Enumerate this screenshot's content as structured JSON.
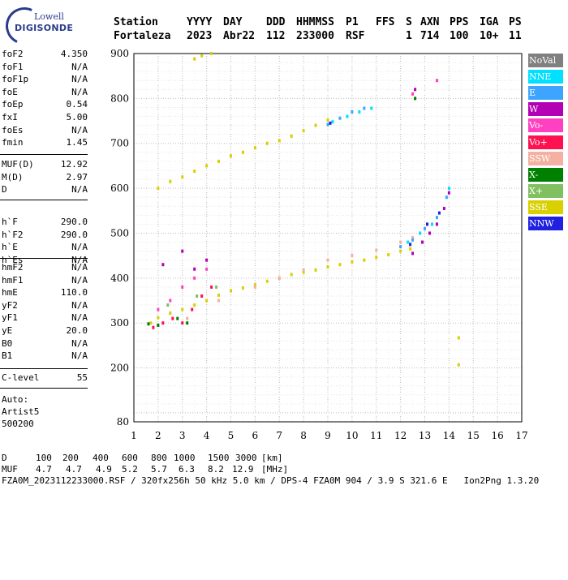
{
  "logo": {
    "line1": "Lowell",
    "line2": "DIGISONDE"
  },
  "header": {
    "labels": [
      "Station",
      "YYYY",
      "DAY",
      "DDD",
      "HHMMSS",
      "P1",
      "FFS",
      "S",
      "AXN",
      "PPS",
      "IGA",
      "PS"
    ],
    "values": [
      "Fortaleza",
      "2023",
      "Abr22",
      "112",
      "233000",
      "RSF",
      "1",
      "714",
      "100",
      "10+",
      "11"
    ]
  },
  "params": [
    {
      "k": "foF2",
      "v": "4.350"
    },
    {
      "k": "foF1",
      "v": "N/A"
    },
    {
      "k": "foF1p",
      "v": "N/A"
    },
    {
      "k": "foE",
      "v": "N/A"
    },
    {
      "k": "foEp",
      "v": "0.54"
    },
    {
      "k": "fxI",
      "v": "5.00"
    },
    {
      "k": "foEs",
      "v": "N/A"
    },
    {
      "k": "fmin",
      "v": "1.45"
    },
    {
      "k": "MUF(D)",
      "v": "12.92"
    },
    {
      "k": "M(D)",
      "v": "2.97"
    },
    {
      "k": "D",
      "v": "N/A"
    },
    {
      "k": "h`F",
      "v": "290.0"
    },
    {
      "k": "h`F2",
      "v": "290.0"
    },
    {
      "k": "h`E",
      "v": "N/A"
    },
    {
      "k": "h`Es",
      "v": "N/A"
    },
    {
      "k": "hmF2",
      "v": "N/A"
    },
    {
      "k": "hmF1",
      "v": "N/A"
    },
    {
      "k": "hmE",
      "v": "110.0"
    },
    {
      "k": "yF2",
      "v": "N/A"
    },
    {
      "k": "yF1",
      "v": "N/A"
    },
    {
      "k": "yE",
      "v": "20.0"
    },
    {
      "k": "B0",
      "v": "N/A"
    },
    {
      "k": "B1",
      "v": "N/A"
    },
    {
      "k": "C-level",
      "v": "55"
    }
  ],
  "auto": {
    "label": "Auto:",
    "artist": "Artist5",
    "version": "500200"
  },
  "legend": [
    {
      "label": "NoVal",
      "color": "#808080"
    },
    {
      "label": "NNE",
      "color": "#00e0ff"
    },
    {
      "label": "E",
      "color": "#3da5ff"
    },
    {
      "label": "W",
      "color": "#b400b4"
    },
    {
      "label": "Vo-",
      "color": "#ff40c0"
    },
    {
      "label": "Vo+",
      "color": "#ff1050"
    },
    {
      "label": "SSW",
      "color": "#f4b0a0"
    },
    {
      "label": "X-",
      "color": "#008000"
    },
    {
      "label": "X+",
      "color": "#80c060"
    },
    {
      "label": "SSE",
      "color": "#d8d000"
    },
    {
      "label": "NNW",
      "color": "#2020e0"
    }
  ],
  "footer": {
    "d_label": "D",
    "d_values": [
      "100",
      "200",
      "400",
      "600",
      "800",
      "1000",
      "1500",
      "3000",
      "[km]"
    ],
    "muf_label": "MUF",
    "muf_values": [
      "4.7",
      "4.7",
      "4.9",
      "5.2",
      "5.7",
      "6.3",
      "8.2",
      "12.9",
      "[MHz]"
    ],
    "file_line": "FZA0M_2023112233000.RSF / 320fx256h 50 kHz 5.0 km / DPS-4 FZA0M 904 / 3.9 S 321.6 E   Ion2Png 1.3.20"
  },
  "chart_data": {
    "type": "scatter",
    "xlim": [
      1,
      17
    ],
    "ylim": [
      80,
      900
    ],
    "x_ticks": [
      1,
      2,
      3,
      4,
      5,
      6,
      7,
      8,
      9,
      10,
      11,
      12,
      13,
      14,
      15,
      16,
      17
    ],
    "y_ticks": [
      200,
      300,
      400,
      500,
      600,
      700,
      800,
      900
    ],
    "y_extra_tick": 80,
    "grid": true,
    "xlabel": "",
    "ylabel": "",
    "series": [
      {
        "color": "#d8d000",
        "points": [
          [
            1.7,
            300
          ],
          [
            2.0,
            312
          ],
          [
            2.5,
            322
          ],
          [
            3.0,
            330
          ],
          [
            3.5,
            340
          ],
          [
            4.0,
            350
          ],
          [
            4.5,
            362
          ],
          [
            5.0,
            372
          ],
          [
            5.5,
            378
          ],
          [
            6.0,
            385
          ],
          [
            6.5,
            393
          ],
          [
            7.0,
            400
          ],
          [
            7.5,
            408
          ],
          [
            8.0,
            413
          ],
          [
            8.5,
            418
          ],
          [
            9.0,
            425
          ],
          [
            9.5,
            430
          ],
          [
            10.0,
            436
          ],
          [
            10.5,
            440
          ],
          [
            11.0,
            446
          ],
          [
            11.5,
            452
          ],
          [
            12.0,
            460
          ],
          [
            12.4,
            465
          ],
          [
            14.4,
            267
          ],
          [
            14.4,
            207
          ]
        ]
      },
      {
        "color": "#d8d000",
        "points": [
          [
            2.0,
            600
          ],
          [
            2.5,
            615
          ],
          [
            3.0,
            625
          ],
          [
            3.5,
            638
          ],
          [
            4.0,
            650
          ],
          [
            4.5,
            660
          ],
          [
            5.0,
            672
          ],
          [
            5.5,
            680
          ],
          [
            6.0,
            690
          ],
          [
            6.5,
            700
          ],
          [
            7.0,
            706
          ],
          [
            7.5,
            716
          ],
          [
            8.0,
            728
          ],
          [
            8.5,
            740
          ],
          [
            9.0,
            752
          ],
          [
            3.5,
            888
          ],
          [
            3.8,
            895
          ],
          [
            4.2,
            900
          ]
        ]
      },
      {
        "color": "#f4b0a0",
        "points": [
          [
            3.2,
            310
          ],
          [
            4.5,
            350
          ],
          [
            6.0,
            380
          ],
          [
            7.0,
            400
          ],
          [
            8.0,
            418
          ],
          [
            9.0,
            440
          ],
          [
            10.0,
            450
          ],
          [
            11.0,
            462
          ],
          [
            12.0,
            480
          ],
          [
            12.5,
            490
          ]
        ]
      },
      {
        "color": "#3da5ff",
        "points": [
          [
            9.0,
            742
          ],
          [
            9.5,
            756
          ],
          [
            10.0,
            770
          ],
          [
            10.5,
            778
          ],
          [
            12.0,
            470
          ],
          [
            12.5,
            485
          ],
          [
            13.0,
            510
          ],
          [
            13.5,
            535
          ],
          [
            13.9,
            580
          ]
        ]
      },
      {
        "color": "#00e0ff",
        "points": [
          [
            9.2,
            748
          ],
          [
            9.8,
            760
          ],
          [
            10.3,
            770
          ],
          [
            10.8,
            778
          ],
          [
            12.3,
            480
          ],
          [
            12.8,
            500
          ],
          [
            13.3,
            520
          ],
          [
            14.0,
            600
          ]
        ]
      },
      {
        "color": "#b400b4",
        "points": [
          [
            12.5,
            455
          ],
          [
            12.9,
            480
          ],
          [
            13.2,
            500
          ],
          [
            13.5,
            520
          ],
          [
            13.8,
            555
          ],
          [
            14.0,
            590
          ],
          [
            12.6,
            820
          ],
          [
            2.2,
            430
          ],
          [
            3.0,
            460
          ],
          [
            3.5,
            420
          ],
          [
            4.0,
            440
          ]
        ]
      },
      {
        "color": "#ff40c0",
        "points": [
          [
            2.0,
            330
          ],
          [
            2.5,
            350
          ],
          [
            3.0,
            380
          ],
          [
            3.5,
            400
          ],
          [
            4.0,
            420
          ],
          [
            12.5,
            810
          ],
          [
            13.5,
            840
          ]
        ]
      },
      {
        "color": "#ff1050",
        "points": [
          [
            1.8,
            290
          ],
          [
            2.2,
            300
          ],
          [
            2.6,
            310
          ],
          [
            3.0,
            300
          ],
          [
            3.4,
            330
          ],
          [
            3.8,
            360
          ],
          [
            4.2,
            380
          ]
        ]
      },
      {
        "color": "#2020e0",
        "points": [
          [
            9.1,
            745
          ],
          [
            12.4,
            475
          ],
          [
            13.1,
            520
          ],
          [
            13.6,
            545
          ]
        ]
      },
      {
        "color": "#008000",
        "points": [
          [
            1.6,
            298
          ],
          [
            2.0,
            295
          ],
          [
            2.8,
            310
          ],
          [
            3.2,
            300
          ],
          [
            12.6,
            800
          ]
        ]
      },
      {
        "color": "#80c060",
        "points": [
          [
            2.4,
            340
          ],
          [
            3.6,
            360
          ],
          [
            4.4,
            380
          ]
        ]
      }
    ]
  }
}
